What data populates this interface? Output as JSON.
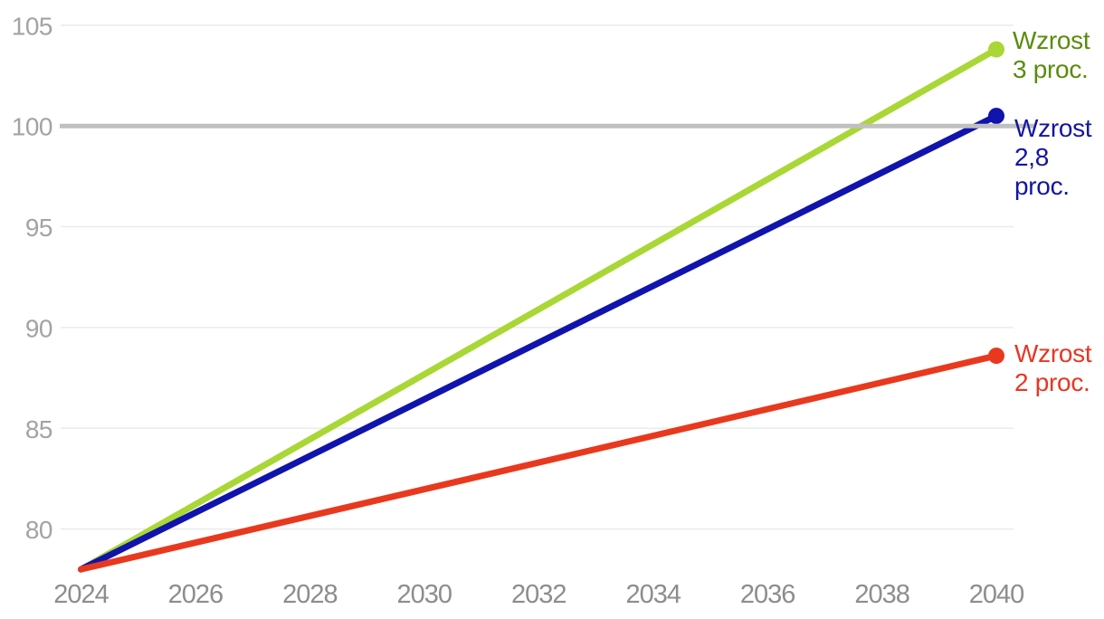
{
  "chart_data": {
    "type": "line",
    "title": "",
    "xlabel": "",
    "ylabel": "",
    "x": [
      2024,
      2040
    ],
    "series": [
      {
        "name": "Wzrost 3 proc.",
        "label_lines": [
          "Wzrost",
          "3 proc."
        ],
        "color": "#a9d735",
        "label_color": "#5a8c0c",
        "values": [
          78,
          103.8
        ]
      },
      {
        "name": "Wzrost 2,8 proc.",
        "label_lines": [
          "Wzrost",
          "2,8",
          "proc."
        ],
        "color": "#1113ad",
        "label_color": "#1315a0",
        "values": [
          78,
          100.5
        ]
      },
      {
        "name": "Wzrost 2 proc.",
        "label_lines": [
          "Wzrost",
          "2 proc."
        ],
        "color": "#e8391e",
        "label_color": "#e63723",
        "values": [
          78,
          88.6
        ]
      }
    ],
    "x_ticks": [
      "2024",
      "2026",
      "2028",
      "2030",
      "2032",
      "2034",
      "2036",
      "2038",
      "2040"
    ],
    "y_ticks": [
      "80",
      "85",
      "90",
      "95",
      "100",
      "105"
    ],
    "xlim": [
      2024,
      2040
    ],
    "ylim": [
      77.5,
      105.6
    ],
    "grid": "horizontal",
    "legend_position": "right-of-line-ends",
    "marker": "end-dot",
    "reference_line": {
      "value": 100,
      "color": "#c0c0c0"
    },
    "colors": {
      "background": "#ffffff",
      "gridline": "#ebebeb",
      "y_axis_text": "#a3a3a3",
      "x_axis_text": "#8d8d8d"
    }
  }
}
